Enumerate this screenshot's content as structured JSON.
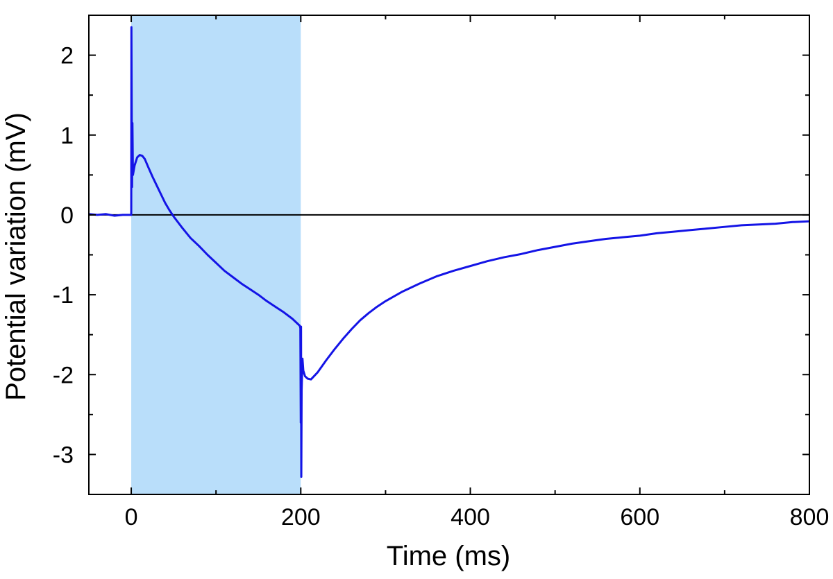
{
  "chart_data": {
    "type": "line",
    "title": "",
    "xlabel": "Time (ms)",
    "ylabel": "Potential variation (mV)",
    "xlim": [
      -50,
      800
    ],
    "ylim": [
      -3.5,
      2.5
    ],
    "x_ticks": [
      0,
      200,
      400,
      600,
      800
    ],
    "y_ticks": [
      -3,
      -2,
      -1,
      0,
      1,
      2
    ],
    "x_minor_step": 100,
    "y_minor_step": 0.5,
    "grid": false,
    "legend": "none",
    "zero_line": 0,
    "shaded_region": {
      "x_start": 0,
      "x_end": 200,
      "color": "#b9defa"
    },
    "series": [
      {
        "color": "#1414e6",
        "points": [
          [
            -50,
            0.01
          ],
          [
            -40,
            0.0
          ],
          [
            -30,
            0.01
          ],
          [
            -20,
            -0.01
          ],
          [
            -10,
            0.0
          ],
          [
            -2,
            0.0
          ],
          [
            0,
            0.0
          ],
          [
            0.2,
            2.35
          ],
          [
            0.6,
            1.2
          ],
          [
            1.0,
            0.35
          ],
          [
            1.4,
            1.15
          ],
          [
            2,
            0.5
          ],
          [
            4,
            0.62
          ],
          [
            7,
            0.72
          ],
          [
            10,
            0.75
          ],
          [
            13,
            0.74
          ],
          [
            16,
            0.7
          ],
          [
            20,
            0.6
          ],
          [
            25,
            0.48
          ],
          [
            30,
            0.37
          ],
          [
            35,
            0.26
          ],
          [
            40,
            0.15
          ],
          [
            45,
            0.06
          ],
          [
            50,
            -0.02
          ],
          [
            55,
            -0.09
          ],
          [
            60,
            -0.16
          ],
          [
            70,
            -0.29
          ],
          [
            80,
            -0.39
          ],
          [
            90,
            -0.5
          ],
          [
            100,
            -0.6
          ],
          [
            110,
            -0.7
          ],
          [
            120,
            -0.78
          ],
          [
            130,
            -0.86
          ],
          [
            140,
            -0.93
          ],
          [
            150,
            -1.0
          ],
          [
            160,
            -1.08
          ],
          [
            170,
            -1.15
          ],
          [
            180,
            -1.22
          ],
          [
            190,
            -1.3
          ],
          [
            195,
            -1.35
          ],
          [
            199,
            -1.39
          ],
          [
            199.5,
            -1.42
          ],
          [
            200,
            -2.6
          ],
          [
            200.3,
            -1.4
          ],
          [
            200.6,
            -3.28
          ],
          [
            201,
            -2.2
          ],
          [
            202,
            -1.8
          ],
          [
            203,
            -1.95
          ],
          [
            205,
            -2.02
          ],
          [
            208,
            -2.05
          ],
          [
            212,
            -2.06
          ],
          [
            220,
            -1.97
          ],
          [
            230,
            -1.82
          ],
          [
            240,
            -1.68
          ],
          [
            250,
            -1.55
          ],
          [
            260,
            -1.43
          ],
          [
            270,
            -1.32
          ],
          [
            280,
            -1.23
          ],
          [
            290,
            -1.15
          ],
          [
            300,
            -1.08
          ],
          [
            320,
            -0.96
          ],
          [
            340,
            -0.86
          ],
          [
            360,
            -0.77
          ],
          [
            380,
            -0.7
          ],
          [
            400,
            -0.64
          ],
          [
            420,
            -0.58
          ],
          [
            440,
            -0.53
          ],
          [
            460,
            -0.49
          ],
          [
            480,
            -0.44
          ],
          [
            500,
            -0.4
          ],
          [
            520,
            -0.36
          ],
          [
            540,
            -0.33
          ],
          [
            560,
            -0.3
          ],
          [
            580,
            -0.28
          ],
          [
            600,
            -0.26
          ],
          [
            620,
            -0.23
          ],
          [
            640,
            -0.21
          ],
          [
            660,
            -0.19
          ],
          [
            680,
            -0.17
          ],
          [
            700,
            -0.15
          ],
          [
            720,
            -0.13
          ],
          [
            740,
            -0.12
          ],
          [
            760,
            -0.11
          ],
          [
            780,
            -0.09
          ],
          [
            800,
            -0.08
          ]
        ]
      }
    ]
  }
}
